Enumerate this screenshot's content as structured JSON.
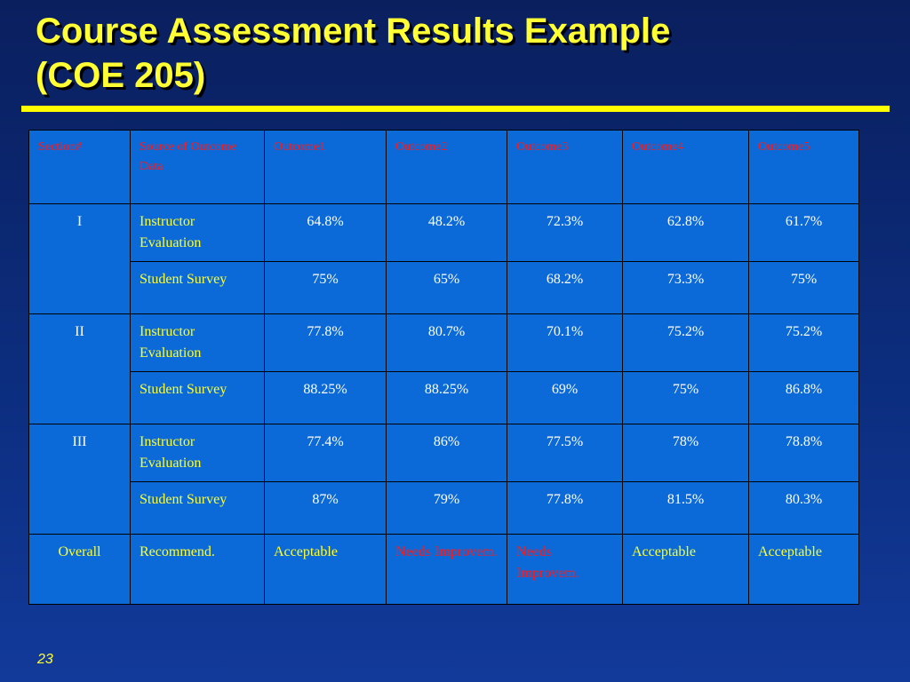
{
  "slide": {
    "title_line1": "Course Assessment Results Example",
    "title_line2": "(COE 205)",
    "page_number": "23",
    "colors": {
      "background": "#0c2d7e",
      "title": "#ffff33",
      "table_fill": "#0b6ad8",
      "header_text": "#ff1a1a",
      "rule": "#ffff00"
    }
  },
  "table": {
    "headers": [
      "Section#",
      "Source of Outcome Data",
      "Outcome1",
      "Outcome2",
      "Outcome3",
      "Outcome4",
      "Outcome5"
    ],
    "sections": [
      {
        "section": "I",
        "rows": [
          {
            "source": "Instructor Evaluation",
            "values": [
              "64.8%",
              "48.2%",
              "72.3%",
              "62.8%",
              "61.7%"
            ]
          },
          {
            "source": "Student Survey",
            "values": [
              "75%",
              "65%",
              "68.2%",
              "73.3%",
              "75%"
            ]
          }
        ]
      },
      {
        "section": "II",
        "rows": [
          {
            "source": "Instructor Evaluation",
            "values": [
              "77.8%",
              "80.7%",
              "70.1%",
              "75.2%",
              "75.2%"
            ]
          },
          {
            "source": "Student Survey",
            "values": [
              "88.25%",
              "88.25%",
              "69%",
              "75%",
              "86.8%"
            ]
          }
        ]
      },
      {
        "section": "III",
        "rows": [
          {
            "source": "Instructor Evaluation",
            "values": [
              "77.4%",
              "86%",
              "77.5%",
              "78%",
              "78.8%"
            ]
          },
          {
            "source": "Student Survey",
            "values": [
              "87%",
              "79%",
              "77.8%",
              "81.5%",
              "80.3%"
            ]
          }
        ]
      }
    ],
    "overall": {
      "label": "Overall",
      "source": "Recommend.",
      "values": [
        "Acceptable",
        "Needs Improvem.",
        "Needs Improvem.",
        "Acceptable",
        "Acceptable"
      ]
    }
  }
}
